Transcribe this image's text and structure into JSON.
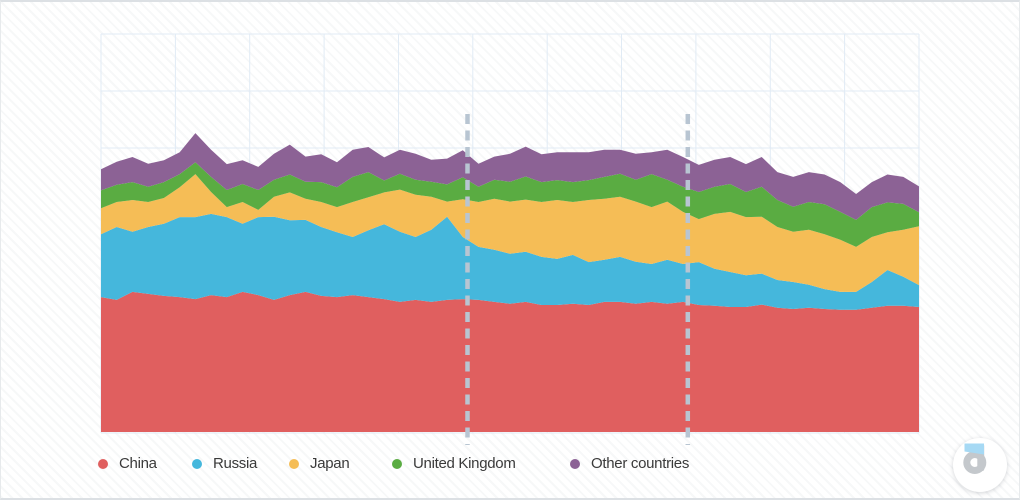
{
  "legend": {
    "items": [
      {
        "label": "China",
        "color": "#e05f5f"
      },
      {
        "label": "Russia",
        "color": "#45b7dc"
      },
      {
        "label": "Japan",
        "color": "#f5bd56"
      },
      {
        "label": "United Kingdom",
        "color": "#5aac42"
      },
      {
        "label": "Other countries",
        "color": "#8c6295"
      }
    ]
  },
  "branding": {
    "logo": "datawrapper-d-logo"
  },
  "chart_data": {
    "type": "area",
    "stacked": true,
    "title": "",
    "subtitle": "",
    "xlabel": "",
    "ylabel": "",
    "x_tick_labels_visible": false,
    "y_tick_labels_visible": false,
    "ylim": [
      0,
      100
    ],
    "grid": {
      "show": true,
      "h_lines": 8,
      "v_lines": 12,
      "color": "#e1ebf5"
    },
    "legend_position": "bottom",
    "reference_lines": {
      "x_index": [
        24.3,
        38.3
      ],
      "style": "dashed",
      "color": "#b8c5d2"
    },
    "x_index": [
      1,
      2,
      3,
      4,
      5,
      6,
      7,
      8,
      9,
      10,
      11,
      12,
      13,
      14,
      15,
      16,
      17,
      18,
      19,
      20,
      21,
      22,
      23,
      24,
      25,
      26,
      27,
      28,
      29,
      30,
      31,
      32,
      33,
      34,
      35,
      36,
      37,
      38,
      39,
      40,
      41,
      42,
      43,
      44,
      45,
      46,
      47,
      48,
      49,
      50,
      51,
      52,
      53
    ],
    "series": [
      {
        "name": "China",
        "color": "#e05f5f",
        "values": [
          33.9,
          33.2,
          35.2,
          34.7,
          34.2,
          33.9,
          33.4,
          34.4,
          33.9,
          35.2,
          34.4,
          33.2,
          34.4,
          35.2,
          34.2,
          33.9,
          34.4,
          33.9,
          33.4,
          32.7,
          33.2,
          32.7,
          33.2,
          33.4,
          33.2,
          32.7,
          32.2,
          32.7,
          31.9,
          31.9,
          32.2,
          31.9,
          32.7,
          32.7,
          32.2,
          32.7,
          32.2,
          32.7,
          31.9,
          31.7,
          31.4,
          31.4,
          32.0,
          31.2,
          30.9,
          31.2,
          30.9,
          30.7,
          30.7,
          31.2,
          31.7,
          31.7,
          31.4
        ]
      },
      {
        "name": "Russia",
        "color": "#45b7dc",
        "values": [
          15.8,
          18.3,
          15.1,
          16.8,
          18.1,
          20.1,
          20.6,
          20.4,
          20.1,
          17.1,
          19.6,
          20.9,
          18.8,
          18.1,
          17.3,
          16.3,
          14.6,
          16.8,
          18.8,
          17.6,
          15.8,
          18.1,
          20.9,
          15.6,
          13.3,
          13.1,
          12.6,
          12.6,
          12.1,
          11.6,
          12.3,
          10.8,
          10.6,
          11.3,
          10.6,
          9.5,
          11.1,
          9.5,
          10.8,
          9.3,
          8.8,
          8.0,
          7.8,
          7.0,
          6.8,
          5.8,
          5.0,
          4.5,
          4.5,
          6.5,
          9.0,
          7.3,
          5.5
        ]
      },
      {
        "name": "Japan",
        "color": "#f5bd56",
        "values": [
          6.5,
          6.3,
          8.0,
          6.3,
          6.5,
          7.5,
          10.8,
          5.5,
          2.5,
          5.5,
          1.8,
          5.0,
          7.0,
          5.3,
          6.3,
          6.3,
          8.8,
          8.3,
          8.0,
          10.6,
          10.6,
          8.3,
          3.8,
          9.5,
          11.3,
          12.8,
          13.1,
          13.1,
          13.8,
          14.8,
          13.3,
          15.6,
          15.3,
          15.1,
          15.1,
          14.3,
          14.6,
          13.1,
          10.8,
          13.8,
          15.1,
          14.6,
          14.3,
          13.3,
          12.6,
          13.8,
          13.8,
          13.1,
          11.3,
          11.3,
          9.5,
          11.8,
          14.8
        ]
      },
      {
        "name": "United Kingdom",
        "color": "#5aac42",
        "values": [
          4.5,
          4.3,
          4.5,
          3.8,
          4.0,
          3.3,
          3.0,
          3.8,
          4.3,
          4.5,
          5.0,
          4.3,
          4.5,
          4.3,
          5.0,
          5.0,
          6.3,
          6.3,
          3.0,
          4.0,
          3.8,
          3.8,
          4.3,
          5.5,
          3.8,
          4.8,
          5.0,
          5.8,
          5.0,
          5.0,
          5.0,
          5.0,
          5.5,
          5.8,
          5.5,
          8.3,
          5.5,
          6.3,
          6.8,
          6.8,
          7.0,
          6.3,
          7.5,
          6.8,
          6.3,
          7.0,
          7.5,
          7.0,
          6.8,
          7.5,
          7.5,
          6.5,
          3.5
        ]
      },
      {
        "name": "Other countries",
        "color": "#8c6295",
        "values": [
          5.3,
          5.8,
          6.3,
          5.8,
          5.5,
          5.5,
          7.3,
          6.8,
          6.5,
          6.0,
          5.8,
          6.5,
          7.5,
          6.3,
          7.0,
          6.3,
          6.8,
          6.3,
          5.8,
          6.0,
          6.5,
          5.5,
          6.5,
          6.8,
          5.8,
          5.8,
          7.0,
          7.5,
          7.0,
          7.0,
          7.5,
          7.0,
          6.8,
          6.0,
          6.5,
          5.5,
          7.5,
          7.5,
          6.8,
          6.8,
          6.8,
          7.0,
          7.5,
          7.0,
          7.5,
          7.5,
          7.5,
          7.5,
          6.5,
          6.3,
          7.0,
          6.8,
          6.5
        ]
      }
    ]
  }
}
